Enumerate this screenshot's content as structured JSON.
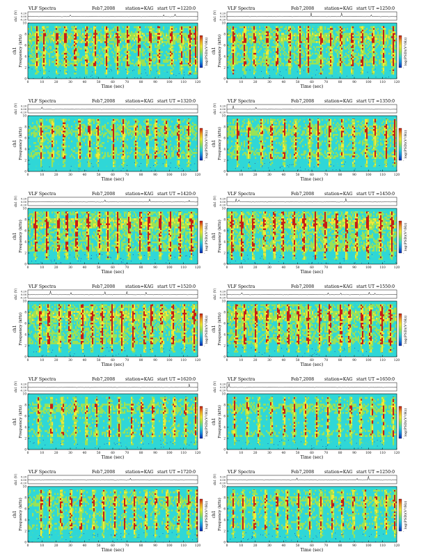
{
  "colors": {
    "background": "#2fd7d7",
    "heat_mid": "#9be255",
    "heat_high": "#f2ea35",
    "heat_peak": "#c81d14",
    "colorbar_stops": [
      "#c81d14",
      "#f0a02a",
      "#f2ea35",
      "#9be255",
      "#2fd7d7",
      "#1c8de0",
      "#0a25b0"
    ]
  },
  "chart_data": [
    {
      "type": "heatmap",
      "title": "VLF Spectra",
      "date": "Feb7,2008",
      "station": "station=KAG",
      "start": "start UT =1220:0",
      "ylabel": "Frequency (kHz)",
      "xlabel": "Time (sec)",
      "ch_label": "ch1",
      "ch_ylabel": "ch1 (V)",
      "ch_ticks": [
        "0.20",
        "0.00",
        "-0.20"
      ],
      "cbar_label": "log(PSD)(V²/Hz)",
      "cbar_bottom": "-",
      "x_ticks": [
        "0",
        "10",
        "20",
        "30",
        "40",
        "50",
        "60",
        "70",
        "80",
        "90",
        "100",
        "110",
        "120"
      ],
      "y_ticks": [
        "0",
        "2",
        "4",
        "6",
        "8",
        "10"
      ],
      "xlim": [
        0,
        120
      ],
      "ylim": [
        0,
        10
      ],
      "seed": 11,
      "intensity": 0.55,
      "bursts": [
        6,
        11,
        20,
        26,
        33,
        41,
        47,
        55,
        63,
        70,
        78,
        86,
        92,
        101,
        108,
        114,
        118
      ]
    },
    {
      "type": "heatmap",
      "title": "VLF Spectra",
      "date": "Feb7,2008",
      "station": "station=KAG",
      "start": "start UT =1250:0",
      "ylabel": "Frequency (kHz)",
      "xlabel": "Time (sec)",
      "ch_label": "ch1",
      "ch_ylabel": "ch1 (V)",
      "ch_ticks": [
        "0.20",
        "0.00",
        "-0.20"
      ],
      "cbar_label": "log(PSD)(V²/Hz)",
      "cbar_bottom": "-",
      "x_ticks": [
        "0",
        "10",
        "20",
        "30",
        "40",
        "50",
        "60",
        "70",
        "80",
        "90",
        "100",
        "110",
        "120"
      ],
      "y_ticks": [
        "0",
        "2",
        "4",
        "6",
        "8",
        "10"
      ],
      "xlim": [
        0,
        120
      ],
      "ylim": [
        0,
        10
      ],
      "seed": 23,
      "intensity": 0.58,
      "bursts": [
        4,
        12,
        19,
        28,
        35,
        44,
        51,
        57,
        66,
        73,
        80,
        88,
        95,
        103,
        110,
        117
      ]
    },
    {
      "type": "heatmap",
      "title": "VLF Spectra",
      "date": "Feb7,2008",
      "station": "station=KAG",
      "start": "start UT =1320:0",
      "ylabel": "Frequency (kHz)",
      "xlabel": "Time (sec)",
      "ch_label": "ch1",
      "ch_ylabel": "ch1 (V)",
      "ch_ticks": [
        "0.20",
        "0.00",
        "-0.20"
      ],
      "cbar_label": "log(PSD)(V²/Hz)",
      "cbar_bottom": "-",
      "x_ticks": [
        "0",
        "10",
        "20",
        "30",
        "40",
        "50",
        "60",
        "70",
        "80",
        "90",
        "100",
        "110",
        "120"
      ],
      "y_ticks": [
        "0",
        "2",
        "4",
        "6",
        "8",
        "10"
      ],
      "xlim": [
        0,
        120
      ],
      "ylim": [
        0,
        10
      ],
      "seed": 37,
      "intensity": 0.45,
      "bursts": [
        9,
        17,
        25,
        36,
        43,
        49,
        60,
        67,
        76,
        84,
        90,
        97,
        106,
        113
      ]
    },
    {
      "type": "heatmap",
      "title": "VLF Spectra",
      "date": "Feb7,2008",
      "station": "station=KAG",
      "start": "start UT =1350:0",
      "ylabel": "Frequency (kHz)",
      "xlabel": "Time (sec)",
      "ch_label": "ch1",
      "ch_ylabel": "ch1 (V)",
      "ch_ticks": [
        "0.20",
        "0.00",
        "-0.20"
      ],
      "cbar_label": "log(PSD)(V²/Hz)",
      "cbar_bottom": "-",
      "x_ticks": [
        "0",
        "10",
        "20",
        "30",
        "40",
        "50",
        "60",
        "70",
        "80",
        "90",
        "100",
        "110",
        "120"
      ],
      "y_ticks": [
        "0",
        "2",
        "4",
        "6",
        "8",
        "10"
      ],
      "xlim": [
        0,
        120
      ],
      "ylim": [
        0,
        10
      ],
      "seed": 41,
      "intensity": 0.46,
      "bursts": [
        7,
        15,
        24,
        31,
        40,
        48,
        58,
        64,
        72,
        81,
        89,
        98,
        104,
        112,
        118
      ]
    },
    {
      "type": "heatmap",
      "title": "VLF Spectra",
      "date": "Feb7,2008",
      "station": "station=KAG",
      "start": "start UT =1420:0",
      "ylabel": "Frequency (kHz)",
      "xlabel": "Time (sec)",
      "ch_label": "ch1",
      "ch_ylabel": "ch1 (V)",
      "ch_ticks": [
        "0.20",
        "0.00",
        "-0.20"
      ],
      "cbar_label": "log(PSD)(V²/Hz)",
      "cbar_bottom": "-",
      "x_ticks": [
        "0",
        "10",
        "20",
        "30",
        "40",
        "50",
        "60",
        "70",
        "80",
        "90",
        "100",
        "110",
        "120"
      ],
      "y_ticks": [
        "0",
        "2",
        "4",
        "6",
        "8",
        "10"
      ],
      "xlim": [
        0,
        120
      ],
      "ylim": [
        0,
        10
      ],
      "seed": 53,
      "intensity": 0.72,
      "bursts": [
        5,
        13,
        21,
        27,
        34,
        42,
        50,
        56,
        63,
        71,
        79,
        85,
        93,
        100,
        107,
        115
      ]
    },
    {
      "type": "heatmap",
      "title": "VLF Spectra",
      "date": "Feb7,2008",
      "station": "station=KAG",
      "start": "start UT =1450:0",
      "ylabel": "Frequency (kHz)",
      "xlabel": "Time (sec)",
      "ch_label": "ch1",
      "ch_ylabel": "ch1 (V)",
      "ch_ticks": [
        "0.20",
        "0.00",
        "-0.20"
      ],
      "cbar_label": "log(PSD)(V²/Hz)",
      "cbar_bottom": "-",
      "x_ticks": [
        "0",
        "10",
        "20",
        "30",
        "40",
        "50",
        "60",
        "70",
        "80",
        "90",
        "100",
        "110",
        "120"
      ],
      "y_ticks": [
        "0",
        "2",
        "4",
        "6",
        "8",
        "10"
      ],
      "xlim": [
        0,
        120
      ],
      "ylim": [
        0,
        10
      ],
      "seed": 67,
      "intensity": 0.74,
      "bursts": [
        3,
        10,
        18,
        26,
        33,
        39,
        47,
        54,
        62,
        69,
        77,
        84,
        91,
        99,
        108,
        116
      ]
    },
    {
      "type": "heatmap",
      "title": "VLF Spectra",
      "date": "Feb7,2008",
      "station": "station=KAG",
      "start": "start UT =1520:0",
      "ylabel": "Frequency (kHz)",
      "xlabel": "Time (sec)",
      "ch_label": "ch1",
      "ch_ylabel": "ch1 (V)",
      "ch_ticks": [
        "0.20",
        "0.00",
        "-0.20"
      ],
      "cbar_label": "log(PSD)(V²/Hz)",
      "cbar_bottom": "-",
      "x_ticks": [
        "0",
        "10",
        "20",
        "30",
        "40",
        "50",
        "60",
        "70",
        "80",
        "90",
        "100",
        "110",
        "120"
      ],
      "y_ticks": [
        "0",
        "2",
        "4",
        "6",
        "8",
        "10"
      ],
      "xlim": [
        0,
        120
      ],
      "ylim": [
        0,
        10
      ],
      "seed": 71,
      "intensity": 0.68,
      "bursts": [
        8,
        14,
        22,
        29,
        38,
        45,
        52,
        59,
        66,
        74,
        82,
        87,
        94,
        102,
        110,
        117
      ]
    },
    {
      "type": "heatmap",
      "title": "VLF Spectra",
      "date": "Feb7,2008",
      "station": "station=KAG",
      "start": "start UT =1550:0",
      "ylabel": "Frequency (kHz)",
      "xlabel": "Time (sec)",
      "ch_label": "ch1",
      "ch_ylabel": "ch1 (V)",
      "ch_ticks": [
        "0.20",
        "0.00",
        "-0.20"
      ],
      "cbar_label": "log(PSD)(V²/Hz)",
      "cbar_bottom": "-",
      "x_ticks": [
        "0",
        "10",
        "20",
        "30",
        "40",
        "50",
        "60",
        "70",
        "80",
        "90",
        "100",
        "110",
        "120"
      ],
      "y_ticks": [
        "0",
        "2",
        "4",
        "6",
        "8",
        "10"
      ],
      "xlim": [
        0,
        120
      ],
      "ylim": [
        0,
        10
      ],
      "seed": 83,
      "intensity": 0.7,
      "bursts": [
        6,
        12,
        20,
        28,
        36,
        43,
        50,
        57,
        65,
        72,
        80,
        86,
        95,
        101,
        109,
        115
      ]
    },
    {
      "type": "heatmap",
      "title": "VLF Spectra",
      "date": "Feb7,2008",
      "station": "station=KAG",
      "start": "start UT =1620:0",
      "ylabel": "Frequency (kHz)",
      "xlabel": "Time (sec)",
      "ch_label": "ch1",
      "ch_ylabel": "ch1 (V)",
      "ch_ticks": [
        "0.20",
        "0.00",
        "-0.20"
      ],
      "cbar_label": "log(PSD)(V²/Hz)",
      "cbar_bottom": "-",
      "x_ticks": [
        "0",
        "10",
        "20",
        "30",
        "40",
        "50",
        "60",
        "70",
        "80",
        "90",
        "100",
        "110",
        "120"
      ],
      "y_ticks": [
        "0",
        "2",
        "4",
        "6",
        "8",
        "10"
      ],
      "xlim": [
        0,
        120
      ],
      "ylim": [
        0,
        10
      ],
      "seed": 97,
      "intensity": 0.34,
      "bursts": [
        7,
        16,
        24,
        33,
        41,
        48,
        57,
        64,
        73,
        80,
        88,
        96,
        103,
        111,
        118
      ]
    },
    {
      "type": "heatmap",
      "title": "VLF Spectra",
      "date": "Feb7,2008",
      "station": "station=KAG",
      "start": "start UT =1650:0",
      "ylabel": "Frequency (kHz)",
      "xlabel": "Time (sec)",
      "ch_label": "ch1",
      "ch_ylabel": "ch1 (V)",
      "ch_ticks": [
        "0.20",
        "0.00",
        "-0.20"
      ],
      "cbar_label": "log(PSD)(V²/Hz)",
      "cbar_bottom": "-",
      "x_ticks": [
        "0",
        "10",
        "20",
        "30",
        "40",
        "50",
        "60",
        "70",
        "80",
        "90",
        "100",
        "110",
        "120"
      ],
      "y_ticks": [
        "0",
        "2",
        "4",
        "6",
        "8",
        "10"
      ],
      "xlim": [
        0,
        120
      ],
      "ylim": [
        0,
        10
      ],
      "seed": 103,
      "intensity": 0.3,
      "bursts": [
        5,
        14,
        22,
        31,
        40,
        47,
        55,
        63,
        71,
        79,
        87,
        94,
        102,
        110,
        117
      ]
    },
    {
      "type": "heatmap",
      "title": "VLF Spectra",
      "date": "Feb7,2008",
      "station": "station=KAG",
      "start": "start UT =1720:0",
      "ylabel": "Frequency (kHz)",
      "xlabel": "Time (sec)",
      "ch_label": "ch1",
      "ch_ylabel": "ch1 (V)",
      "ch_ticks": [
        "0.20",
        "0.00",
        "-0.20"
      ],
      "cbar_label": "log(PSD)(V²/Hz)",
      "cbar_bottom": "-",
      "x_ticks": [
        "0",
        "10",
        "20",
        "30",
        "40",
        "50",
        "60",
        "70",
        "80",
        "90",
        "100",
        "110",
        "120"
      ],
      "y_ticks": [
        "0",
        "2",
        "4",
        "6",
        "8",
        "10"
      ],
      "xlim": [
        0,
        120
      ],
      "ylim": [
        0,
        10
      ],
      "seed": 109,
      "intensity": 0.4,
      "bursts": [
        9,
        15,
        23,
        30,
        37,
        46,
        53,
        61,
        68,
        75,
        83,
        90,
        98,
        106,
        113,
        119
      ]
    },
    {
      "type": "heatmap",
      "title": "VLF Spectra",
      "date": "Feb7,2008",
      "station": "station=KAG",
      "start": "start UT =1250:0",
      "ylabel": "Frequency (kHz)",
      "xlabel": "Time (sec)",
      "ch_label": "ch1",
      "ch_ylabel": "ch1 (V)",
      "ch_ticks": [
        "0.20",
        "0.00",
        "-0.20"
      ],
      "cbar_label": "log(PSD)(V²/Hz)",
      "cbar_bottom": "-",
      "x_ticks": [
        "0",
        "10",
        "20",
        "30",
        "40",
        "50",
        "60",
        "70",
        "80",
        "90",
        "100",
        "110",
        "120"
      ],
      "y_ticks": [
        "0",
        "2",
        "4",
        "6",
        "8",
        "10"
      ],
      "xlim": [
        0,
        120
      ],
      "ylim": [
        0,
        10
      ],
      "seed": 127,
      "intensity": 0.38,
      "bursts": [
        4,
        11,
        19,
        27,
        35,
        42,
        50,
        58,
        66,
        74,
        81,
        89,
        97,
        105,
        112,
        118
      ]
    }
  ]
}
